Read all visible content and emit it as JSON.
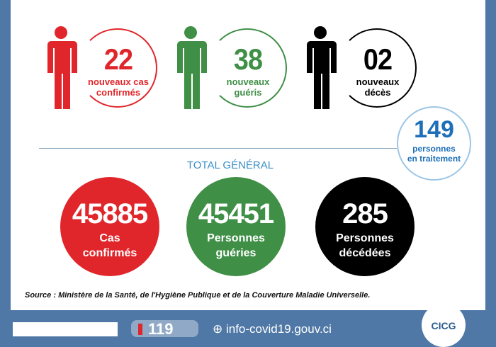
{
  "new_stats": [
    {
      "value": "22",
      "label1": "nouveaux cas",
      "label2": "confirmés",
      "color": "#e0262b"
    },
    {
      "value": "38",
      "label1": "nouveaux",
      "label2": "guéris",
      "color": "#3f8f46"
    },
    {
      "value": "02",
      "label1": "nouveaux",
      "label2": "décès",
      "color": "#000000"
    }
  ],
  "in_treatment": {
    "value": "149",
    "label1": "personnes",
    "label2": "en traitement",
    "color": "#1d6fb8"
  },
  "total_heading": "TOTAL GÉNÉRAL",
  "totals": [
    {
      "value": "45885",
      "label1": "Cas",
      "label2": "confirmés",
      "color": "#e0262b"
    },
    {
      "value": "45451",
      "label1": "Personnes",
      "label2": "guéries",
      "color": "#3f8f46"
    },
    {
      "value": "285",
      "label1": "Personnes",
      "label2": "décédées",
      "color": "#000000"
    }
  ],
  "source": "Source : Ministère de la Santé, de l'Hygiène Publique et de la Couverture Maladie Universelle.",
  "footer": {
    "hotline": "119",
    "website": "info-covid19.gouv.ci",
    "logo": "CICG"
  }
}
